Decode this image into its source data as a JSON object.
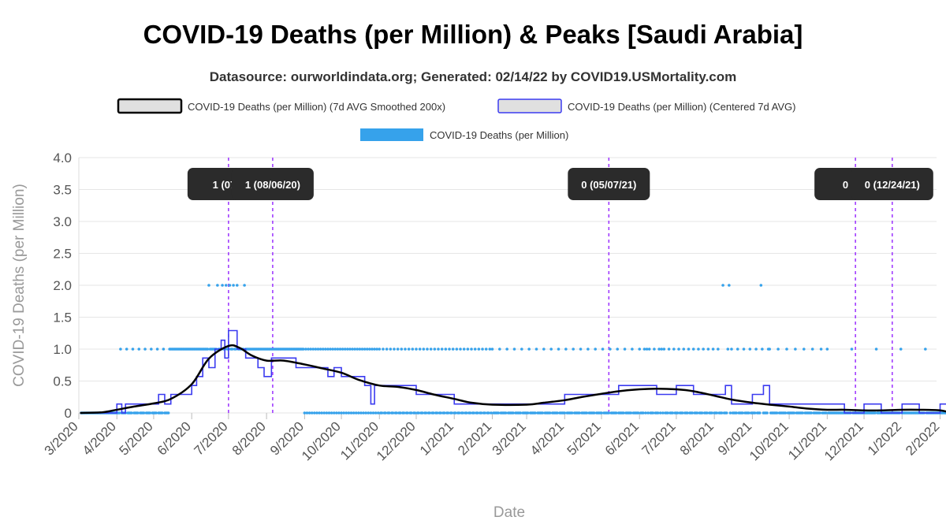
{
  "chart_data": {
    "type": "line",
    "title": "COVID-19 Deaths (per Million) & Peaks [Saudi Arabia]",
    "subtitle": "Datasource: ourworldindata.org; Generated: 02/14/22 by COVID19.USMortality.com",
    "xlabel": "Date",
    "ylabel": "COVID-19 Deaths (per Million)",
    "ylim": [
      0,
      4
    ],
    "yticks": [
      "0",
      "0.5",
      "1.0",
      "1.5",
      "2.0",
      "2.5",
      "3.0",
      "3.5",
      "4.0"
    ],
    "xticks": [
      "3/2020",
      "4/2020",
      "5/2020",
      "6/2020",
      "7/2020",
      "8/2020",
      "9/2020",
      "10/2020",
      "11/2020",
      "12/2020",
      "1/2021",
      "2/2021",
      "3/2021",
      "4/2021",
      "5/2021",
      "6/2021",
      "7/2021",
      "8/2021",
      "9/2021",
      "10/2021",
      "11/2021",
      "12/2021",
      "1/2022",
      "2/2022"
    ],
    "legend": [
      {
        "label": "COVID-19 Deaths (per Million) (7d AVG Smoothed 200x)",
        "color": "#000000",
        "fill": "#e0e0e0"
      },
      {
        "label": "COVID-19 Deaths (per Million) (Centered 7d AVG)",
        "color": "#3b3bf0",
        "fill": "#e0e0e0"
      },
      {
        "label": "COVID-19 Deaths (per Million)",
        "color": "#36a2eb",
        "fill": "#36a2eb"
      }
    ],
    "colors": {
      "smoothed": "#000000",
      "centered": "#3b3bf0",
      "daily": "#36a2eb",
      "peak_line": "#9b30ff",
      "peak_box": "#2b2b2b",
      "grid": "#e6e6e6"
    },
    "series": [
      {
        "name": "COVID-19 Deaths (per Million) (7d AVG Smoothed 200x)",
        "points": [
          [
            "2020-03-02",
            0
          ],
          [
            "2020-03-20",
            0.01
          ],
          [
            "2020-04-01",
            0.05
          ],
          [
            "2020-04-15",
            0.1
          ],
          [
            "2020-05-01",
            0.15
          ],
          [
            "2020-05-15",
            0.22
          ],
          [
            "2020-06-01",
            0.45
          ],
          [
            "2020-06-15",
            0.85
          ],
          [
            "2020-07-01",
            1.05
          ],
          [
            "2020-07-10",
            1.02
          ],
          [
            "2020-07-20",
            0.9
          ],
          [
            "2020-08-01",
            0.82
          ],
          [
            "2020-08-15",
            0.82
          ],
          [
            "2020-09-01",
            0.76
          ],
          [
            "2020-09-15",
            0.7
          ],
          [
            "2020-10-01",
            0.63
          ],
          [
            "2020-10-15",
            0.52
          ],
          [
            "2020-11-01",
            0.43
          ],
          [
            "2020-11-15",
            0.41
          ],
          [
            "2020-12-01",
            0.36
          ],
          [
            "2020-12-15",
            0.29
          ],
          [
            "2021-01-01",
            0.22
          ],
          [
            "2021-01-15",
            0.16
          ],
          [
            "2021-02-01",
            0.13
          ],
          [
            "2021-03-01",
            0.13
          ],
          [
            "2021-03-15",
            0.16
          ],
          [
            "2021-04-01",
            0.2
          ],
          [
            "2021-04-15",
            0.25
          ],
          [
            "2021-05-01",
            0.3
          ],
          [
            "2021-05-15",
            0.34
          ],
          [
            "2021-06-01",
            0.37
          ],
          [
            "2021-06-15",
            0.38
          ],
          [
            "2021-07-01",
            0.37
          ],
          [
            "2021-07-15",
            0.34
          ],
          [
            "2021-08-01",
            0.27
          ],
          [
            "2021-08-15",
            0.21
          ],
          [
            "2021-09-01",
            0.16
          ],
          [
            "2021-09-15",
            0.13
          ],
          [
            "2021-10-01",
            0.1
          ],
          [
            "2021-10-15",
            0.07
          ],
          [
            "2021-11-01",
            0.05
          ],
          [
            "2021-11-15",
            0.05
          ],
          [
            "2021-12-01",
            0.04
          ],
          [
            "2021-12-15",
            0.04
          ],
          [
            "2022-01-01",
            0.05
          ],
          [
            "2022-01-15",
            0.05
          ],
          [
            "2022-02-01",
            0.04
          ],
          [
            "2022-02-10",
            0
          ]
        ]
      },
      {
        "name": "COVID-19 Deaths (per Million) (Centered 7d AVG)",
        "points": [
          [
            "2020-03-02",
            0
          ],
          [
            "2020-03-20",
            0
          ],
          [
            "2020-04-01",
            0.14
          ],
          [
            "2020-04-05",
            0
          ],
          [
            "2020-04-08",
            0.14
          ],
          [
            "2020-04-20",
            0.14
          ],
          [
            "2020-05-01",
            0.14
          ],
          [
            "2020-05-05",
            0.29
          ],
          [
            "2020-05-10",
            0.14
          ],
          [
            "2020-05-15",
            0.29
          ],
          [
            "2020-05-25",
            0.29
          ],
          [
            "2020-06-01",
            0.43
          ],
          [
            "2020-06-05",
            0.57
          ],
          [
            "2020-06-10",
            0.86
          ],
          [
            "2020-06-15",
            0.71
          ],
          [
            "2020-06-20",
            1.0
          ],
          [
            "2020-06-25",
            1.14
          ],
          [
            "2020-06-28",
            0.86
          ],
          [
            "2020-07-01",
            1.29
          ],
          [
            "2020-07-05",
            1.29
          ],
          [
            "2020-07-08",
            1.0
          ],
          [
            "2020-07-12",
            1.0
          ],
          [
            "2020-07-15",
            0.86
          ],
          [
            "2020-07-20",
            0.86
          ],
          [
            "2020-07-25",
            0.71
          ],
          [
            "2020-07-30",
            0.57
          ],
          [
            "2020-08-05",
            0.86
          ],
          [
            "2020-08-20",
            0.86
          ],
          [
            "2020-08-25",
            0.71
          ],
          [
            "2020-09-01",
            0.71
          ],
          [
            "2020-09-10",
            0.71
          ],
          [
            "2020-09-20",
            0.57
          ],
          [
            "2020-09-25",
            0.71
          ],
          [
            "2020-10-01",
            0.57
          ],
          [
            "2020-10-10",
            0.57
          ],
          [
            "2020-10-20",
            0.43
          ],
          [
            "2020-10-25",
            0.14
          ],
          [
            "2020-10-28",
            0.43
          ],
          [
            "2020-11-01",
            0.43
          ],
          [
            "2020-11-15",
            0.43
          ],
          [
            "2020-11-25",
            0.43
          ],
          [
            "2020-12-01",
            0.29
          ],
          [
            "2020-12-15",
            0.29
          ],
          [
            "2020-12-28",
            0.29
          ],
          [
            "2021-01-01",
            0.14
          ],
          [
            "2021-01-10",
            0.14
          ],
          [
            "2021-01-20",
            0.14
          ],
          [
            "2021-02-01",
            0.14
          ],
          [
            "2021-02-15",
            0.14
          ],
          [
            "2021-03-01",
            0.14
          ],
          [
            "2021-03-15",
            0.14
          ],
          [
            "2021-04-01",
            0.29
          ],
          [
            "2021-04-15",
            0.29
          ],
          [
            "2021-05-01",
            0.29
          ],
          [
            "2021-05-15",
            0.43
          ],
          [
            "2021-06-01",
            0.43
          ],
          [
            "2021-06-15",
            0.29
          ],
          [
            "2021-07-01",
            0.43
          ],
          [
            "2021-07-15",
            0.29
          ],
          [
            "2021-08-01",
            0.29
          ],
          [
            "2021-08-10",
            0.43
          ],
          [
            "2021-08-15",
            0.14
          ],
          [
            "2021-09-01",
            0.29
          ],
          [
            "2021-09-10",
            0.43
          ],
          [
            "2021-09-15",
            0.14
          ],
          [
            "2021-10-01",
            0.14
          ],
          [
            "2021-10-15",
            0.14
          ],
          [
            "2021-11-01",
            0.14
          ],
          [
            "2021-11-15",
            0
          ],
          [
            "2021-12-01",
            0.14
          ],
          [
            "2021-12-15",
            0
          ],
          [
            "2022-01-01",
            0.14
          ],
          [
            "2022-01-15",
            0
          ],
          [
            "2022-02-01",
            0.14
          ],
          [
            "2022-02-10",
            0
          ]
        ]
      },
      {
        "name": "COVID-19 Deaths (per Million)",
        "daily_ones": [
          [
            "2020-04-04",
            "2020-07-30",
            5
          ],
          [
            "2020-05-15",
            "2020-08-31",
            1
          ],
          [
            "2020-08-01",
            "2020-10-31",
            2
          ],
          [
            "2020-11-01",
            "2021-01-31",
            3
          ],
          [
            "2021-02-01",
            "2021-06-30",
            6
          ],
          [
            "2021-06-01",
            "2021-08-15",
            4
          ],
          [
            "2021-08-15",
            "2021-09-15",
            5
          ],
          [
            "2021-09-15",
            "2021-10-31",
            7
          ],
          [
            "2021-11-01",
            "2022-02-10",
            20
          ]
        ],
        "twos": [
          "2020-06-15",
          "2020-06-22",
          "2020-06-26",
          "2020-06-29",
          "2020-07-02",
          "2020-07-05",
          "2020-07-08",
          "2020-07-14",
          "2021-08-08",
          "2021-08-13",
          "2021-09-08"
        ]
      }
    ],
    "peaks": [
      {
        "date": "2020-07-01",
        "label": "1 (07/0"
      },
      {
        "date": "2020-08-06",
        "label": "1 (08/06/20)"
      },
      {
        "date": "2021-05-07",
        "label": "0 (05/07/21)"
      },
      {
        "date": "2021-11-24",
        "label": "0 (11/"
      },
      {
        "date": "2021-12-24",
        "label": "0 (12/24/21)"
      }
    ]
  }
}
